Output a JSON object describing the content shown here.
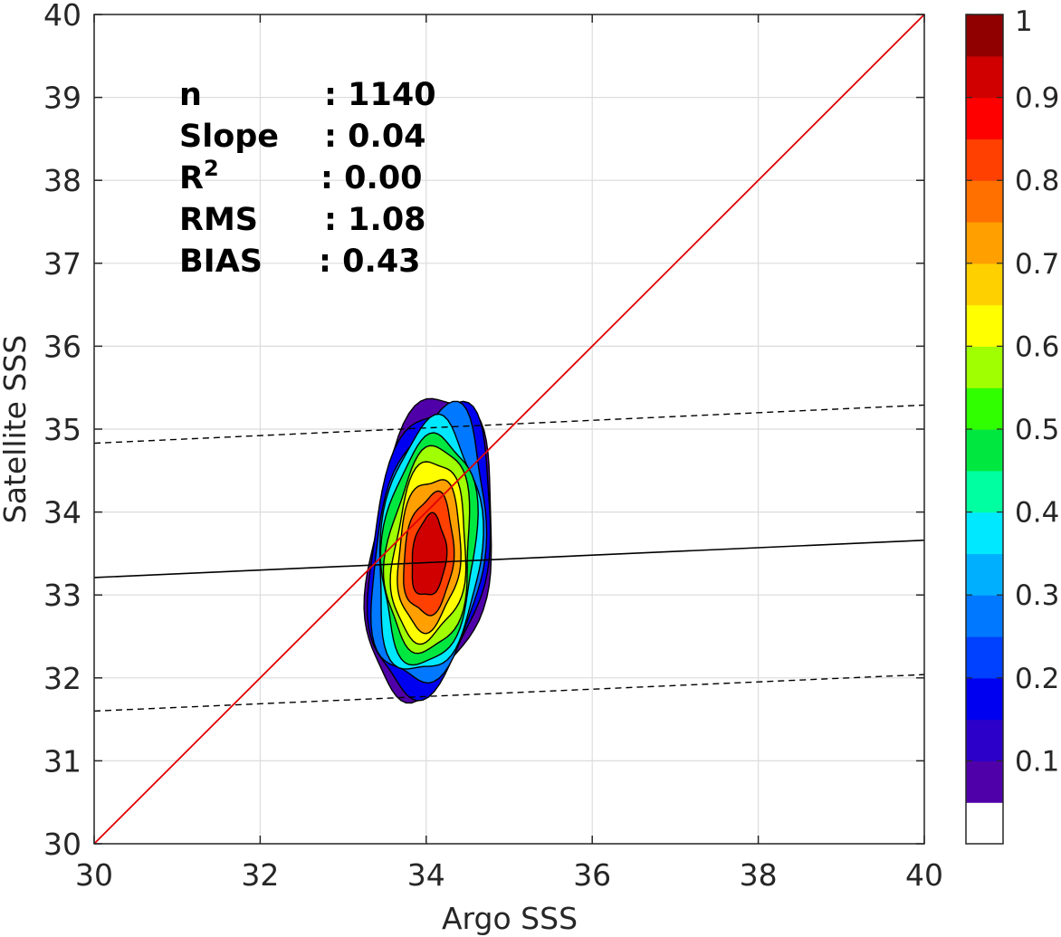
{
  "chart_data": {
    "type": "density-contour-scatter",
    "xlabel": "Argo SSS",
    "ylabel": "Satellite SSS",
    "xlim": [
      30,
      40
    ],
    "ylim": [
      30,
      40
    ],
    "x_ticks": [
      "30",
      "32",
      "34",
      "36",
      "38",
      "40"
    ],
    "y_ticks": [
      "30",
      "31",
      "32",
      "33",
      "34",
      "35",
      "36",
      "37",
      "38",
      "39",
      "40"
    ],
    "grid": true,
    "stats": [
      {
        "name": "n",
        "value": ": 1140"
      },
      {
        "name": "Slope",
        "value": ": 0.04"
      },
      {
        "name": "R",
        "sup": "2",
        "value": ": 0.00"
      },
      {
        "name": "RMS",
        "value": ": 1.08"
      },
      {
        "name": "BIAS",
        "value": ": 0.43"
      }
    ],
    "identity_line": {
      "x": [
        30,
        40
      ],
      "y": [
        30,
        40
      ],
      "color": "#e00000"
    },
    "fit_line": {
      "x": [
        30,
        40
      ],
      "y": [
        33.21,
        33.66
      ],
      "color": "#000000"
    },
    "bound_lines": [
      {
        "x": [
          30,
          40
        ],
        "y": [
          34.83,
          35.29
        ],
        "style": "dashed"
      },
      {
        "x": [
          30,
          40
        ],
        "y": [
          31.6,
          32.04
        ],
        "style": "dashed"
      }
    ],
    "density": {
      "peak": [
        34.03,
        33.42
      ],
      "levels": [
        0.05,
        0.1,
        0.2,
        0.3,
        0.4,
        0.5,
        0.6,
        0.7,
        0.8,
        0.9
      ]
    },
    "colorbar": {
      "ticks": [
        "0.1",
        "0.2",
        "0.3",
        "0.4",
        "0.5",
        "0.6",
        "0.7",
        "0.8",
        "0.9",
        "1"
      ],
      "tick_values": [
        0.1,
        0.2,
        0.3,
        0.4,
        0.5,
        0.6,
        0.7,
        0.8,
        0.9,
        1.0
      ],
      "range": [
        0,
        1
      ],
      "colors": [
        "#ffffff",
        "#5000a8",
        "#2c00c8",
        "#0000f0",
        "#0040ff",
        "#0078ff",
        "#00b0ff",
        "#00e8ff",
        "#00ffa0",
        "#00e840",
        "#30ff00",
        "#a0ff00",
        "#ffff00",
        "#ffd000",
        "#ffa000",
        "#ff7000",
        "#ff4000",
        "#ff0000",
        "#d00000",
        "#900000"
      ]
    }
  }
}
